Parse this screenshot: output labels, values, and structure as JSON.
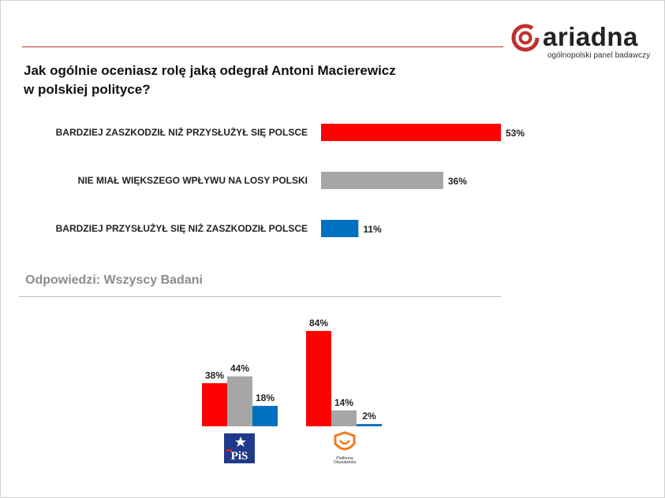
{
  "brand": {
    "name": "ariadna",
    "tagline": "ogólnopolski panel badawczy",
    "accent_color": "#c0302c"
  },
  "question": {
    "line1": "Jak ogólnie oceniasz rolę jaką odegrał Antoni Macierewicz",
    "line2": "w polskiej polityce?"
  },
  "subtitle": "Odpowiedzi: Wszyscy Badani",
  "party_logos": {
    "pis": "PiS",
    "po": "Platforma Obywatelska"
  },
  "chart_data": [
    {
      "type": "bar",
      "orientation": "horizontal",
      "categories": [
        "BARDZIEJ ZASZKODZIŁ NIŻ PRZYSŁUŻYŁ SIĘ POLSCE",
        "NIE MIAŁ WIĘKSZEGO WPŁYWU NA LOSY POLSKI",
        "BARDZIEJ PRZYSŁUŻYŁ SIĘ NIŻ ZASZKODZIŁ POLSCE"
      ],
      "values": [
        53,
        36,
        11
      ],
      "value_labels": [
        "53%",
        "36%",
        "11%"
      ],
      "colors": [
        "#ff0000",
        "#a6a6a6",
        "#0070c0"
      ],
      "xlim": [
        0,
        53
      ],
      "grid": false
    },
    {
      "type": "bar",
      "orientation": "vertical",
      "categories": [
        "PiS",
        "Platforma Obywatelska"
      ],
      "series": [
        {
          "values": [
            38,
            84
          ],
          "value_labels": [
            "38%",
            "84%"
          ],
          "color": "#ff0000"
        },
        {
          "values": [
            44,
            14
          ],
          "value_labels": [
            "44%",
            "14%"
          ],
          "color": "#a6a6a6"
        },
        {
          "values": [
            18,
            2
          ],
          "value_labels": [
            "18%",
            "2%"
          ],
          "color": "#0070c0"
        }
      ],
      "ylim": [
        0,
        84
      ],
      "grid": false
    }
  ]
}
